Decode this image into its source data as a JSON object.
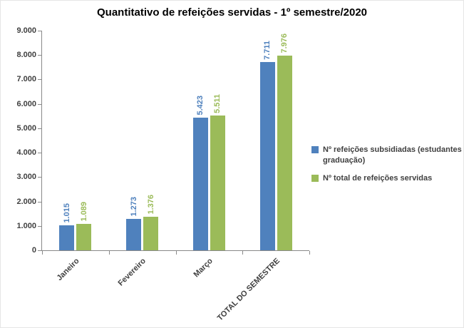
{
  "chart_data": {
    "type": "bar",
    "title": "Quantitativo de refeições servidas - 1º semestre/2020",
    "categories": [
      "Janeiro",
      "Fevereiro",
      "Março",
      "TOTAL DO SEMESTRE"
    ],
    "series": [
      {
        "name": "Nº refeições subsidiadas (estudantes graduação)",
        "color": "#4F81BD",
        "values": [
          1015,
          1273,
          5423,
          7711
        ],
        "labels": [
          "1.015",
          "1.273",
          "5.423",
          "7.711"
        ]
      },
      {
        "name": "Nº total de refeições servidas",
        "color": "#9BBB59",
        "values": [
          1089,
          1376,
          5511,
          7976
        ],
        "labels": [
          "1.089",
          "1.376",
          "5.511",
          "7.976"
        ]
      }
    ],
    "xlabel": "",
    "ylabel": "",
    "ylim": [
      0,
      9000
    ],
    "y_ticks": [
      "9.000",
      "8.000",
      "7.000",
      "6.000",
      "5.000",
      "4.000",
      "3.000",
      "2.000",
      "1.000",
      "0"
    ],
    "grid": false,
    "legend_position": "right",
    "axis_color": "#898989"
  }
}
